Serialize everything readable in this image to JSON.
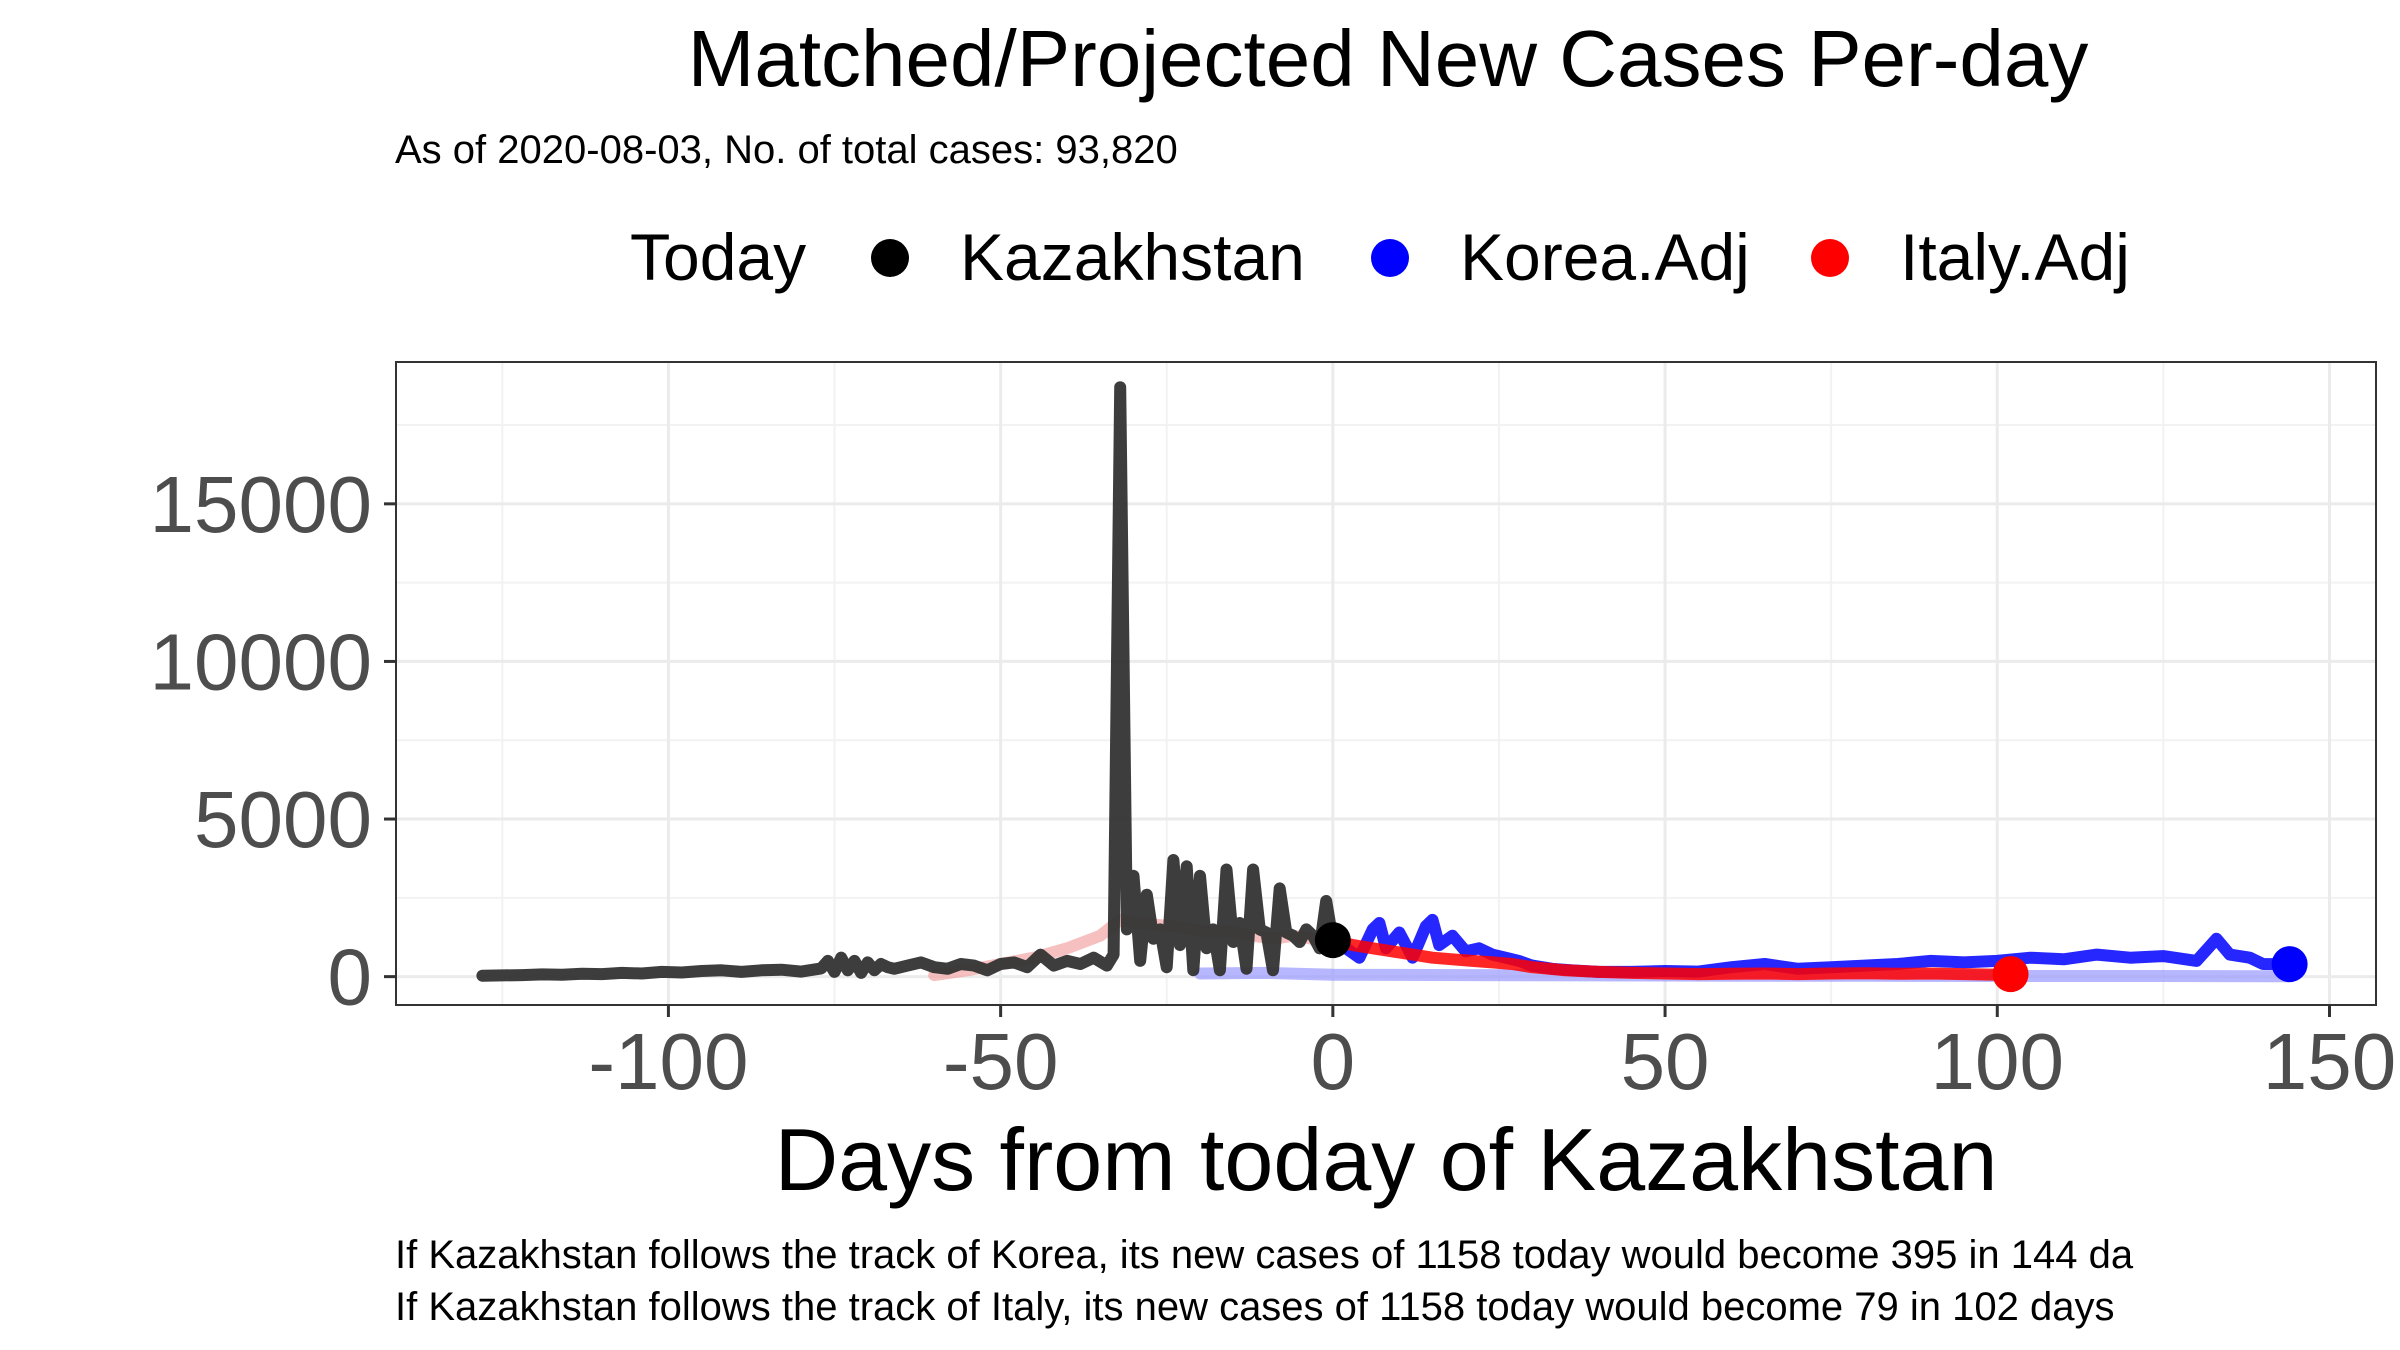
{
  "chart_data": {
    "type": "line",
    "title": "Matched/Projected New Cases Per-day",
    "subtitle": "As of 2020-08-03, No. of total cases: 93,820",
    "xlabel": "Days from today of Kazakhstan",
    "ylabel": "",
    "xlim": [
      -141,
      157
    ],
    "ylim": [
      -900,
      19500
    ],
    "x_ticks": [
      -100,
      -50,
      0,
      50,
      100,
      150
    ],
    "y_ticks": [
      0,
      5000,
      10000,
      15000
    ],
    "x_tick_labels": [
      "-100",
      "-50",
      "0",
      "50",
      "100",
      "150"
    ],
    "y_tick_labels": [
      "0",
      "5000",
      "10000",
      "15000"
    ],
    "grid": true,
    "legend": {
      "position": "top",
      "title": "Today",
      "items": [
        {
          "label": "Kazakhstan",
          "color": "#000000"
        },
        {
          "label": "Korea.Adj",
          "color": "#0000ff"
        },
        {
          "label": "Italy.Adj",
          "color": "#ff0000"
        }
      ]
    },
    "captions": [
      "If Kazakhstan follows the track of Korea, its new cases of 1158 today would become 395 in 144 da",
      "If Kazakhstan follows the track of Italy, its new cases of 1158 today would become 79 in 102 days"
    ],
    "series": [
      {
        "name": "Kazakhstan",
        "color": "#333333",
        "x": [
          -128,
          -125,
          -122,
          -119,
          -116,
          -113,
          -110,
          -107,
          -104,
          -101,
          -98,
          -95,
          -92,
          -89,
          -86,
          -83,
          -80,
          -77,
          -76,
          -75,
          -74,
          -73,
          -72,
          -71,
          -70,
          -69,
          -68,
          -67,
          -66,
          -64,
          -62,
          -60,
          -58,
          -56,
          -54,
          -52,
          -50,
          -48,
          -46,
          -44,
          -42,
          -40,
          -38,
          -36,
          -34,
          -33,
          -32,
          -31,
          -30,
          -29,
          -28,
          -27,
          -26,
          -25,
          -24,
          -23,
          -22,
          -21,
          -20,
          -19,
          -18,
          -17,
          -16,
          -15,
          -14,
          -13,
          -12,
          -11,
          -10,
          -9,
          -8,
          -7,
          -6,
          -5,
          -4,
          -3,
          -2,
          -1,
          0
        ],
        "y": [
          30,
          40,
          50,
          70,
          60,
          90,
          80,
          120,
          100,
          150,
          130,
          180,
          200,
          150,
          200,
          220,
          160,
          260,
          500,
          150,
          600,
          200,
          500,
          120,
          450,
          200,
          400,
          300,
          250,
          350,
          450,
          300,
          250,
          400,
          350,
          200,
          400,
          450,
          300,
          700,
          350,
          500,
          400,
          600,
          350,
          700,
          18700,
          1500,
          3200,
          500,
          2600,
          1200,
          1500,
          300,
          3700,
          1000,
          3500,
          200,
          3200,
          900,
          1500,
          200,
          3400,
          1100,
          1700,
          250,
          3400,
          1500,
          1400,
          200,
          2800,
          1400,
          1300,
          1100,
          1500,
          1300,
          900,
          2400,
          1158
        ]
      },
      {
        "name": "Korea.Adj",
        "color": "#0000ff",
        "x": [
          0,
          2,
          4,
          6,
          7,
          8,
          10,
          12,
          14,
          15,
          16,
          18,
          20,
          22,
          24,
          26,
          28,
          30,
          33,
          36,
          40,
          45,
          50,
          55,
          60,
          65,
          70,
          75,
          80,
          85,
          90,
          95,
          100,
          105,
          110,
          115,
          120,
          125,
          130,
          133,
          135,
          138,
          140,
          144
        ],
        "y": [
          1158,
          900,
          600,
          1500,
          1700,
          900,
          1400,
          600,
          1600,
          1800,
          1000,
          1300,
          800,
          900,
          700,
          600,
          500,
          350,
          250,
          200,
          150,
          150,
          180,
          160,
          300,
          400,
          250,
          300,
          350,
          400,
          500,
          450,
          500,
          600,
          550,
          700,
          600,
          650,
          500,
          1200,
          700,
          600,
          400,
          395
        ]
      },
      {
        "name": "Korea.Adj (matched)",
        "color": "#9999ff",
        "x": [
          -20,
          -10,
          0,
          20,
          40,
          60,
          80,
          100,
          120,
          140,
          144
        ],
        "y": [
          100,
          120,
          60,
          50,
          40,
          30,
          25,
          20,
          20,
          15,
          15
        ]
      },
      {
        "name": "Italy.Adj",
        "color": "#ff0000",
        "x": [
          0,
          3,
          6,
          9,
          12,
          15,
          18,
          21,
          24,
          27,
          30,
          35,
          40,
          45,
          50,
          55,
          60,
          65,
          70,
          75,
          80,
          85,
          90,
          95,
          100,
          102
        ],
        "y": [
          1158,
          1000,
          900,
          800,
          700,
          600,
          550,
          500,
          450,
          400,
          300,
          200,
          150,
          120,
          100,
          80,
          90,
          100,
          80,
          100,
          110,
          90,
          100,
          80,
          60,
          79
        ]
      },
      {
        "name": "Italy.Adj (matched)",
        "color": "#f4a5a5",
        "x": [
          -60,
          -55,
          -50,
          -45,
          -40,
          -35,
          -32,
          -30,
          -27,
          -24,
          -21,
          -18,
          -15,
          -12,
          -9,
          -6,
          -3,
          0
        ],
        "y": [
          50,
          200,
          400,
          600,
          900,
          1300,
          1800,
          1700,
          1650,
          1600,
          1500,
          1400,
          1450,
          1300,
          1200,
          1300,
          1200,
          1158
        ]
      }
    ],
    "endpoints": [
      {
        "series": "Kazakhstan",
        "x": 0,
        "y": 1158,
        "color": "#000000"
      },
      {
        "series": "Korea.Adj",
        "x": 144,
        "y": 395,
        "color": "#0000ff"
      },
      {
        "series": "Italy.Adj",
        "x": 102,
        "y": 79,
        "color": "#ff0000"
      }
    ]
  }
}
